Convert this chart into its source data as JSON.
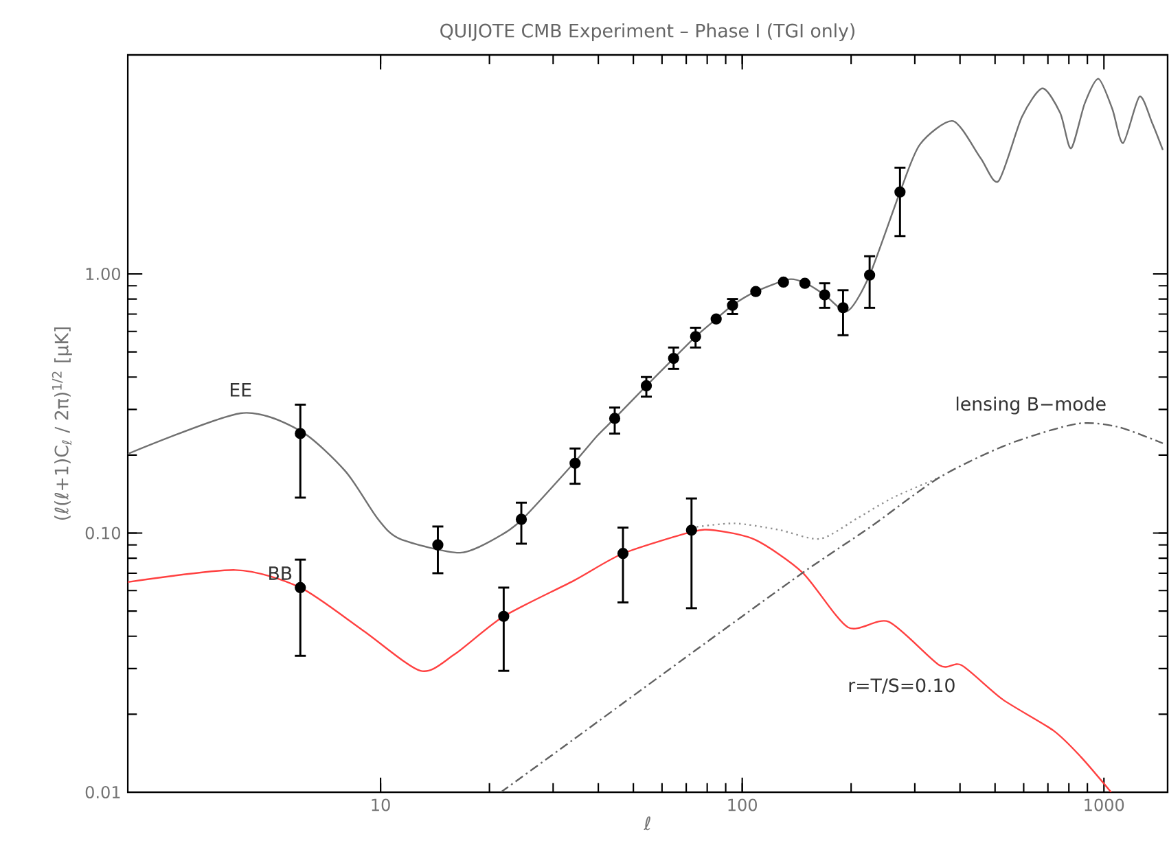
{
  "chart_data": {
    "type": "line",
    "title": "QUIJOTE CMB Experiment – Phase I (TGI only)",
    "xlabel": "ℓ",
    "ylabel": "(ℓ(ℓ+1)C$_{ℓ}$ / 2π)$^{1/2}$ [μK]",
    "log": "xy",
    "xlim": [
      2,
      1500
    ],
    "ylim": [
      0.01,
      7
    ],
    "xticks": [
      10,
      100,
      1000
    ],
    "yticks": [
      {
        "value": 0.01,
        "label": "0.01"
      },
      {
        "value": 0.1,
        "label": "0.10"
      },
      {
        "value": 1,
        "label": "1.00"
      }
    ],
    "series": [
      {
        "name": "EE",
        "color": "#707070",
        "line_style": "solid",
        "marker": "none",
        "x": [
          2,
          4.1,
          6,
          8,
          9.8,
          11.3,
          16.6,
          21.5,
          24.8,
          34.2,
          39.7,
          44.4,
          54.3,
          64.6,
          74.3,
          84.7,
          94,
          109,
          134.5,
          150,
          169,
          195.6,
          225,
          273,
          310,
          383,
          456,
          511,
          593,
          676,
          757,
          811,
          885,
          966,
          1055,
          1130,
          1254,
          1358,
          1455
        ],
        "values": [
          0.202,
          0.29,
          0.248,
          0.173,
          0.114,
          0.095,
          0.084,
          0.098,
          0.114,
          0.186,
          0.237,
          0.277,
          0.37,
          0.472,
          0.573,
          0.67,
          0.757,
          0.855,
          0.953,
          0.92,
          0.83,
          0.72,
          0.99,
          2.07,
          3.16,
          3.89,
          2.8,
          2.28,
          4.03,
          5.2,
          4.18,
          3.05,
          4.55,
          5.66,
          4.33,
          3.2,
          4.83,
          3.84,
          3.01
        ]
      },
      {
        "name": "r=T/S=0.10",
        "color": "#ff4040",
        "line_style": "solid",
        "marker": "none",
        "x": [
          2,
          3.97,
          6,
          9,
          12.9,
          16,
          21.9,
          34.2,
          46.8,
          72.4,
          84,
          109,
          147,
          196,
          254,
          351,
          404,
          525,
          725,
          863,
          1047
        ],
        "values": [
          0.0647,
          0.072,
          0.0616,
          0.0418,
          0.0294,
          0.034,
          0.0477,
          0.0655,
          0.0834,
          0.101,
          0.1025,
          0.094,
          0.0703,
          0.0433,
          0.0455,
          0.0309,
          0.0309,
          0.0228,
          0.0173,
          0.0137,
          0.01
        ]
      },
      {
        "color": "#909090",
        "line_style": "dotted",
        "marker": "none",
        "x": [
          72.4,
          95,
          126,
          164,
          208,
          261,
          351
        ],
        "values": [
          0.105,
          0.109,
          0.103,
          0.095,
          0.114,
          0.137,
          0.164
        ]
      },
      {
        "name": "lensing B−mode",
        "color": "#606060",
        "line_style": "dashed",
        "marker": "none",
        "x": [
          21.5,
          34.2,
          72.4,
          147,
          227,
          351,
          543,
          840,
          1091,
          1455
        ],
        "values": [
          0.01,
          0.016,
          0.0344,
          0.0703,
          0.106,
          0.164,
          0.22,
          0.264,
          0.257,
          0.222
        ]
      },
      {
        "type": "scatter",
        "color": "#000000",
        "marker": "circle",
        "x": [
          6,
          14.4,
          24.5,
          34.5,
          44.4,
          54.3,
          64.6,
          74.3,
          84.7,
          94,
          109,
          130,
          149,
          169,
          190,
          225,
          273
        ],
        "values": [
          0.242,
          0.09,
          0.113,
          0.186,
          0.277,
          0.37,
          0.472,
          0.573,
          0.67,
          0.757,
          0.855,
          0.93,
          0.92,
          0.83,
          0.74,
          0.99,
          2.07
        ],
        "errors": [
          [
            0.137,
            0.313
          ],
          [
            0.07,
            0.106
          ],
          [
            0.091,
            0.131
          ],
          [
            0.155,
            0.212
          ],
          [
            0.242,
            0.305
          ],
          [
            0.336,
            0.4
          ],
          [
            0.43,
            0.52
          ],
          [
            0.52,
            0.62
          ],
          null,
          [
            0.7,
            0.8
          ],
          null,
          null,
          null,
          [
            0.74,
            0.92
          ],
          [
            0.58,
            0.865
          ],
          [
            0.74,
            1.17
          ],
          [
            1.4,
            2.57
          ]
        ]
      },
      {
        "type": "scatter",
        "name": "BB",
        "color": "#000000",
        "marker": "circle",
        "x": [
          6,
          21.9,
          46.8,
          72.4
        ],
        "values": [
          0.0616,
          0.0477,
          0.0834,
          0.1026
        ],
        "errors": [
          [
            0.0336,
            0.079
          ],
          [
            0.0294,
            0.0616
          ],
          [
            0.054,
            0.105
          ],
          [
            0.0513,
            0.136
          ]
        ]
      }
    ]
  }
}
